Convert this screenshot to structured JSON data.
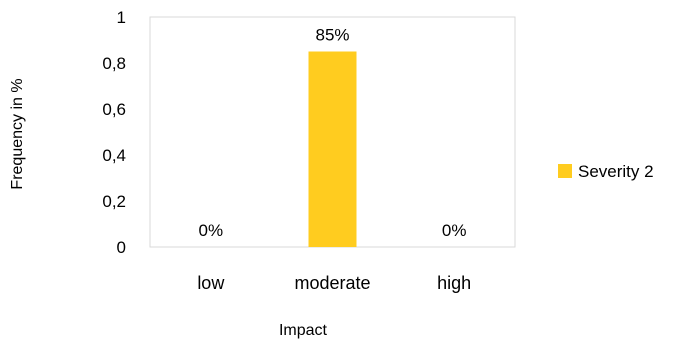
{
  "chart_data": {
    "type": "bar",
    "categories": [
      "low",
      "moderate",
      "high"
    ],
    "series": [
      {
        "name": "Severity 2",
        "values": [
          0,
          0.85,
          0
        ],
        "data_labels": [
          "0%",
          "85%",
          "0%"
        ],
        "color": "#FFCC1F"
      }
    ],
    "xlabel": "Impact",
    "ylabel": "Frequency in %",
    "ylim": [
      0,
      1
    ],
    "yticks": [
      "0",
      "0,2",
      "0,4",
      "0,6",
      "0,8",
      "1"
    ],
    "grid": false,
    "legend": "right"
  }
}
